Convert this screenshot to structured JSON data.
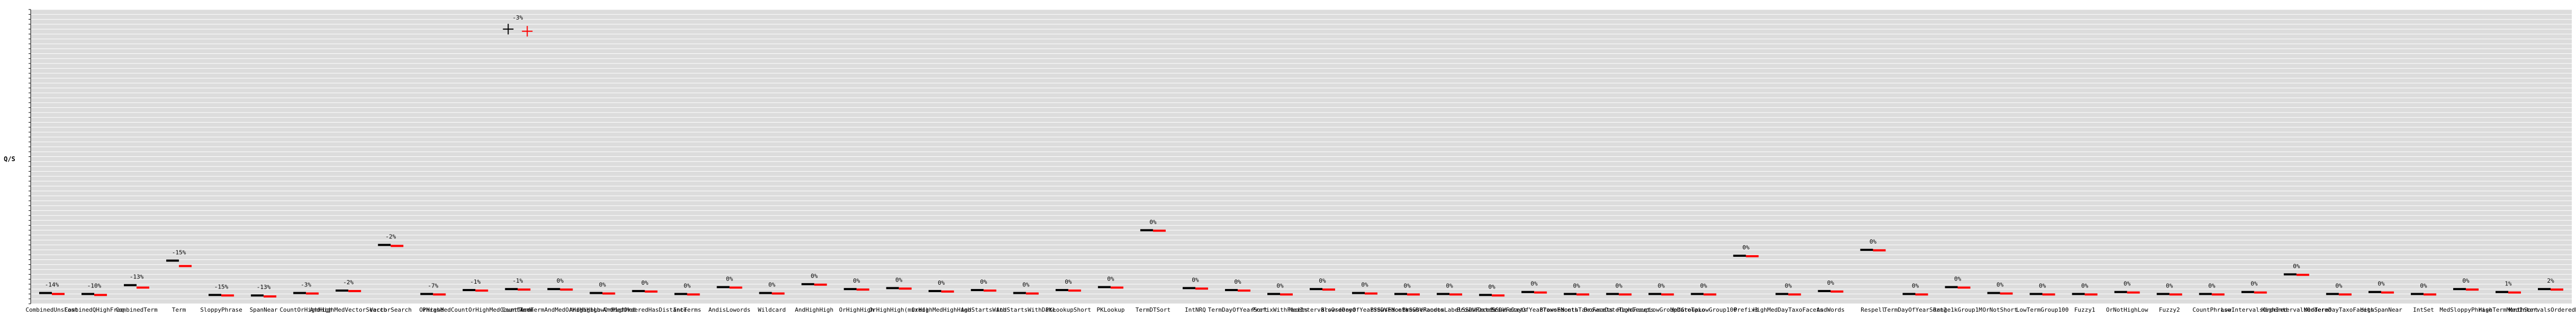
{
  "chart_data": {
    "type": "bar",
    "ylabel": "Q/S",
    "grid": true,
    "colors": {
      "baseline": "#000000",
      "decrease": "#ff0000",
      "increase": "#00cc00",
      "background": "#dcdcdc",
      "gridline": "#ffffff"
    },
    "ylim": [
      0,
      600
    ],
    "categories": [
      "CombinedUnsFast",
      "CombinedQHighFreq",
      "CombinedTerm",
      "Term",
      "SloppyPhrase",
      "SpanNear",
      "CountOrHighHigh",
      "AndHighMedVectorSearch",
      "VectorSearch",
      "Phrase",
      "OrHighMedCountOrHighMedCountTerm",
      "CountTerm",
      "AndTermAndMedOrHighHigh",
      "AndHighLowOrHighMed",
      "AndMedOrderedHasDistance",
      "IntTerms",
      "AndisLowords",
      "Wildcard",
      "AndHighHigh",
      "OrHighHigh",
      "OrHighHigh(mixed)",
      "OrHighMedHighHigh",
      "AndStartsWith",
      "AndStartsWithDate",
      "PKLookupShort",
      "PKLookup",
      "TermDTSort",
      "IntNRQ",
      "TermDayOfYearSort",
      "PrefixWithFacets",
      "MedIntervalsOrdered",
      "BrowseDayOfYearSSDVFacets",
      "BrowseMonthSSDVFacets",
      "BrowseRandomLabelSSDVFacets",
      "BrowseDateSSDVFacets",
      "BrowseDayOfYearTaxoFacets",
      "BrowseMonthTaxoFacets",
      "BrowseDateTaxoFacets",
      "HighGroupLowGroupDateTaxo",
      "MedGroupLowGroup100",
      "Prefix3",
      "HighMedDayTaxoFacets",
      "AndWords",
      "Respell",
      "TermDayOfYearSort2",
      "Range1kGroup1M",
      "OrNotShort",
      "LowTermGroup100",
      "Fuzzy1",
      "OrNotHighLow",
      "Fuzzy2",
      "CountPhrase",
      "LowIntervalsOrdered",
      "HighIntervalsOrdered",
      "MedTermDayTaxoFacets",
      "HighSpanNear",
      "IntSet",
      "MedSloppyPhrase",
      "HighTermMonthSort",
      "MedIntervalsOrderedRange"
    ],
    "series": [
      {
        "name": "baseline",
        "values": [
          22,
          20,
          38,
          88,
          18,
          17,
          22,
          27,
          120,
          20,
          28,
          30,
          30,
          22,
          26,
          20,
          34,
          22,
          40,
          30,
          32,
          26,
          28,
          22,
          28,
          34,
          150,
          32,
          28,
          20,
          30,
          22,
          20,
          20,
          18,
          24,
          20,
          20,
          20,
          20,
          98,
          20,
          26,
          110,
          20,
          34,
          22,
          20,
          20,
          24,
          20,
          20,
          24,
          60,
          20,
          24,
          20,
          30,
          24,
          30
        ]
      },
      {
        "name": "candidate",
        "values": [
          20,
          18,
          33,
          77,
          17,
          15,
          21,
          26,
          118,
          19,
          27,
          29,
          29,
          21,
          25,
          19,
          33,
          21,
          39,
          29,
          31,
          25,
          27,
          21,
          27,
          33,
          149,
          31,
          27,
          19,
          29,
          21,
          19,
          19,
          17,
          23,
          19,
          19,
          19,
          19,
          97,
          19,
          25,
          109,
          19,
          33,
          21,
          19,
          19,
          23,
          19,
          19,
          23,
          59,
          19,
          23,
          19,
          29,
          23,
          29
        ]
      }
    ],
    "pct_labels": [
      "-14%",
      "-10%",
      "-13%",
      "-15%",
      "-15%",
      "-13%",
      "-3%",
      "-2%",
      "-2%",
      "-7%",
      "-1%",
      "-1%",
      "0%",
      "0%",
      "0%",
      "0%",
      "0%",
      "0%",
      "0%",
      "0%",
      "0%",
      "0%",
      "0%",
      "0%",
      "0%",
      "0%",
      "0%",
      "0%",
      "0%",
      "0%",
      "0%",
      "0%",
      "0%",
      "0%",
      "0%",
      "0%",
      "0%",
      "0%",
      "0%",
      "0%",
      "0%",
      "0%",
      "0%",
      "0%",
      "0%",
      "0%",
      "0%",
      "0%",
      "0%",
      "0%",
      "0%",
      "0%",
      "0%",
      "0%",
      "0%",
      "0%",
      "0%",
      "0%",
      "1%",
      "2%"
    ],
    "outlier": {
      "index": 11,
      "label": "-3%",
      "value": 560
    }
  }
}
